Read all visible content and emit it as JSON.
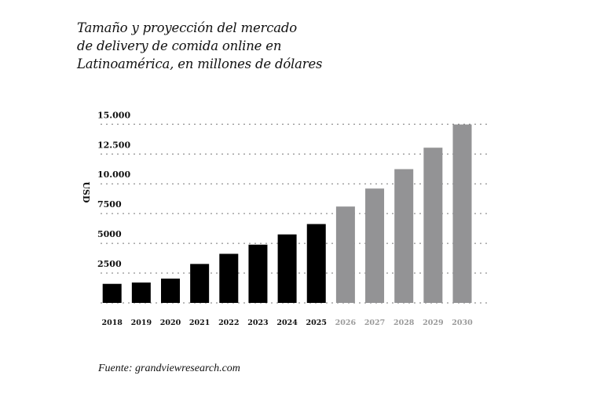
{
  "chart_data": {
    "type": "bar",
    "title_lines": [
      "Tamaño y proyección del mercado",
      "de delivery de comida online en",
      "Latinoamérica, en millones de dólares"
    ],
    "xlabel": "",
    "ylabel": "USD",
    "ylim": [
      0,
      15000
    ],
    "yticks": [
      2500,
      5000,
      7500,
      10000,
      12500,
      15000
    ],
    "ytick_labels": [
      "2500",
      "5000",
      "7500",
      "10.000",
      "12.500",
      "15.000"
    ],
    "grid": true,
    "categories": [
      "2018",
      "2019",
      "2020",
      "2021",
      "2022",
      "2023",
      "2024",
      "2025",
      "2026",
      "2027",
      "2028",
      "2029",
      "2030"
    ],
    "values": [
      1600,
      1710,
      2040,
      3270,
      4120,
      4890,
      5750,
      6620,
      8090,
      9600,
      11230,
      13030,
      14980
    ],
    "projected": [
      false,
      false,
      false,
      false,
      false,
      false,
      false,
      false,
      true,
      true,
      true,
      true,
      true
    ],
    "colors": {
      "actual": "#000000",
      "projected": "#939395",
      "projected_label": "#9a9a9a",
      "grid": "#777777"
    },
    "source": "Fuente: grandviewresearch.com"
  }
}
